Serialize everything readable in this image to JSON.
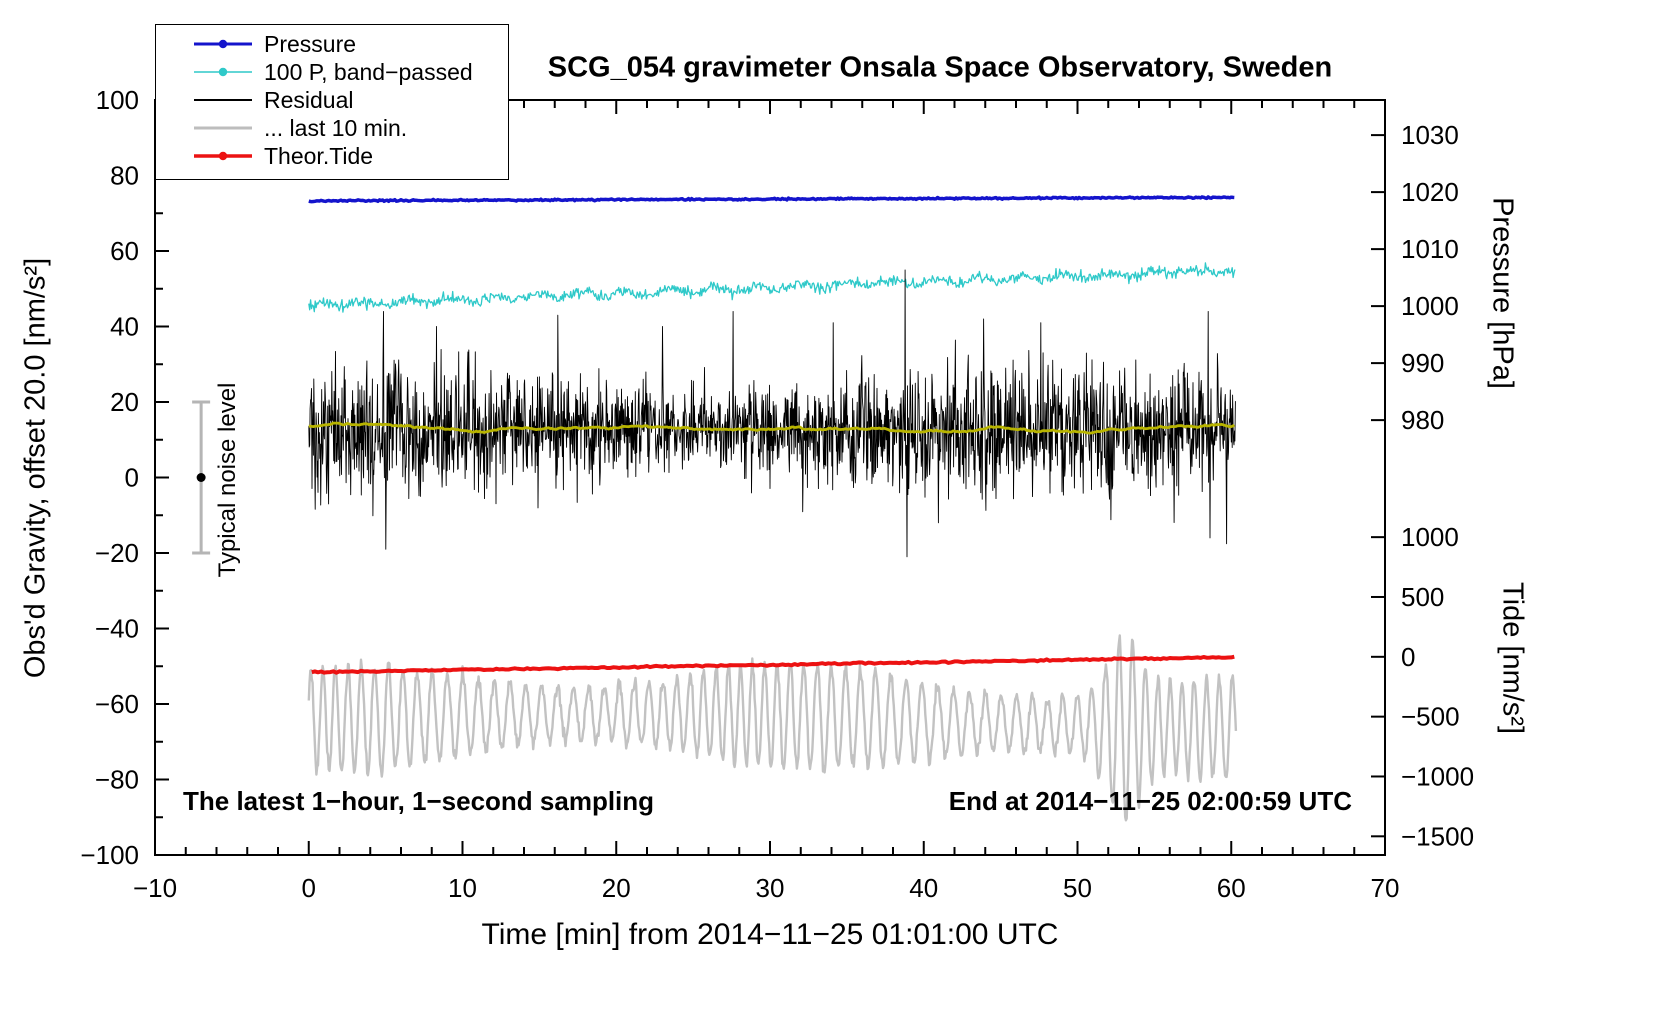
{
  "title": "SCG_054 gravimeter Onsala Space Observatory, Sweden",
  "legend": {
    "items": [
      {
        "label": "Pressure",
        "color": "#1414cc",
        "marker": "dot",
        "marker_width": 3
      },
      {
        "label": "100 P, band−passed",
        "color": "#2fc9c9",
        "marker": "dot",
        "marker_width": 1.6
      },
      {
        "label": "Residual",
        "color": "#000000",
        "marker": "line",
        "marker_width": 2
      },
      {
        "label": "... last 10 min.",
        "color": "#bdbdbd",
        "marker": "line",
        "marker_width": 3
      },
      {
        "label": "Theor.Tide",
        "color": "#ec1212",
        "marker": "dot",
        "marker_width": 3.5
      }
    ]
  },
  "axes": {
    "x": {
      "label": "Time [min] from 2014−11−25 01:01:00 UTC",
      "range": [
        -10,
        70
      ],
      "minor_step": 2,
      "ticks": [
        {
          "v": -10,
          "label": "−10"
        },
        {
          "v": 0,
          "label": "0"
        },
        {
          "v": 10,
          "label": "10"
        },
        {
          "v": 20,
          "label": "20"
        },
        {
          "v": 30,
          "label": "30"
        },
        {
          "v": 40,
          "label": "40"
        },
        {
          "v": 50,
          "label": "50"
        },
        {
          "v": 60,
          "label": "60"
        },
        {
          "v": 70,
          "label": "70"
        }
      ]
    },
    "y_left": {
      "label": "Obs'd Gravity, offset 20.0 [nm/s²]",
      "range": [
        -100,
        100
      ],
      "minor_step": 10,
      "ticks": [
        {
          "v": 100,
          "label": "100"
        },
        {
          "v": 80,
          "label": "80"
        },
        {
          "v": 60,
          "label": "60"
        },
        {
          "v": 40,
          "label": "40"
        },
        {
          "v": 20,
          "label": "20"
        },
        {
          "v": 0,
          "label": "0"
        },
        {
          "v": -20,
          "label": "−20"
        },
        {
          "v": -40,
          "label": "−40"
        },
        {
          "v": -60,
          "label": "−60"
        },
        {
          "v": -80,
          "label": "−80"
        },
        {
          "v": -100,
          "label": "−100"
        }
      ]
    },
    "y_pressure": {
      "label": "Pressure [hPa]",
      "ticks": [
        {
          "left_v": 90.7,
          "label": "1030"
        },
        {
          "left_v": 75.6,
          "label": "1020"
        },
        {
          "left_v": 60.5,
          "label": "1010"
        },
        {
          "left_v": 45.4,
          "label": "1000"
        },
        {
          "left_v": 30.3,
          "label": "990"
        },
        {
          "left_v": 15.2,
          "label": "980"
        }
      ]
    },
    "y_tide": {
      "label": "Tide [nm/s²]",
      "ticks": [
        {
          "left_v": -15.8,
          "label": "1000"
        },
        {
          "left_v": -31.65,
          "label": "500"
        },
        {
          "left_v": -47.5,
          "label": "0"
        },
        {
          "left_v": -63.35,
          "label": "−500"
        },
        {
          "left_v": -79.2,
          "label": "−1000"
        },
        {
          "left_v": -95.05,
          "label": "−1500"
        }
      ]
    }
  },
  "annotations": {
    "sampling": "The latest 1−hour, 1−second sampling",
    "end": "End at 2014−11−25 02:00:59 UTC",
    "noise_label": "Typical noise level"
  },
  "typical_noise_level": {
    "x": -7,
    "value": 0,
    "half_range": 20,
    "label": "Typical noise level"
  },
  "chart_data": {
    "type": "line",
    "title": "SCG_054 gravimeter Onsala Space Observatory, Sweden",
    "xlabel": "Time [min] from 2014−11−25 01:01:00 UTC",
    "x_range": [
      -10,
      70
    ],
    "y_left_label": "Obs'd Gravity, offset 20.0 [nm/s²]",
    "y_left_range": [
      -100,
      100
    ],
    "y_right_pressure": {
      "label": "Pressure [hPa]",
      "tick_values": [
        1030,
        1020,
        1010,
        1000,
        990,
        980
      ]
    },
    "y_right_tide": {
      "label": "Tide [nm/s²]",
      "tick_values": [
        1000,
        500,
        0,
        -500,
        -1000,
        -1500
      ]
    },
    "grid": false,
    "legend_position": "top-left",
    "series": [
      {
        "id": "pressure",
        "name": "Pressure",
        "kind": "trend",
        "color": "#1414cc",
        "x": [
          0,
          60.3
        ],
        "values_left_axis": [
          73.3,
          74.2
        ],
        "approx_pressure_hPa": [
          1017.9,
          1018.5
        ],
        "noise": 0.1,
        "width": 3.5,
        "step": 0.1
      },
      {
        "id": "band_passed",
        "name": "100 P, band−passed",
        "kind": "noisy_trend",
        "color": "#2fc9c9",
        "x": [
          0,
          60.3
        ],
        "values_left_axis": [
          45.6,
          55.0
        ],
        "noise": 0.75,
        "wiggle": 0.6,
        "width": 1.3,
        "step": 0.06
      },
      {
        "id": "residual",
        "name": "Residual",
        "kind": "noise_band",
        "color": "#000000",
        "x": [
          0,
          60.3
        ],
        "mean": 12.5,
        "sigma": 7.2,
        "typical_range": [
          -15,
          40
        ],
        "extremes": {
          "max": 55,
          "max_t": 38.8,
          "min": -21,
          "min_t": 38.9
        },
        "spikes": [
          {
            "t": 4.85,
            "v": 44
          },
          {
            "t": 5.0,
            "v": -19
          },
          {
            "t": 8.3,
            "v": 40
          },
          {
            "t": 16.2,
            "v": 43
          },
          {
            "t": 23.0,
            "v": 40
          },
          {
            "t": 27.6,
            "v": 44
          },
          {
            "t": 34.1,
            "v": 41
          },
          {
            "t": 38.78,
            "v": 55
          },
          {
            "t": 38.92,
            "v": -21
          },
          {
            "t": 43.9,
            "v": 42
          },
          {
            "t": 47.6,
            "v": 41
          },
          {
            "t": 58.5,
            "v": 44
          },
          {
            "t": 58.62,
            "v": -16
          }
        ],
        "width": 0.9,
        "step": 0.03
      },
      {
        "id": "residual_mean",
        "name": "Residual smoothed",
        "kind": "smooth",
        "color": "#b8b400",
        "x": [
          0,
          60.3
        ],
        "mean": 12.9,
        "width": 2.8,
        "step": 0.1
      },
      {
        "id": "last10",
        "name": "... last 10 min.",
        "kind": "oscillation",
        "color": "#c2c2c2",
        "x": [
          0,
          60.3
        ],
        "center": -64.5,
        "amplitude": 10.5,
        "period_min": 0.9,
        "extremes": {
          "max": -32,
          "max_t": 53.2,
          "min": -91,
          "min_t": 53.6
        },
        "width": 2.4,
        "step": 0.05
      },
      {
        "id": "tide",
        "name": "Theor.Tide",
        "kind": "trend",
        "color": "#ec1212",
        "x": [
          0.2,
          60.3
        ],
        "values_left_axis": [
          -51.6,
          -47.6
        ],
        "approx_tide_nms2": [
          -128,
          -3
        ],
        "noise": 0.1,
        "width": 4,
        "step": 0.2
      }
    ]
  }
}
